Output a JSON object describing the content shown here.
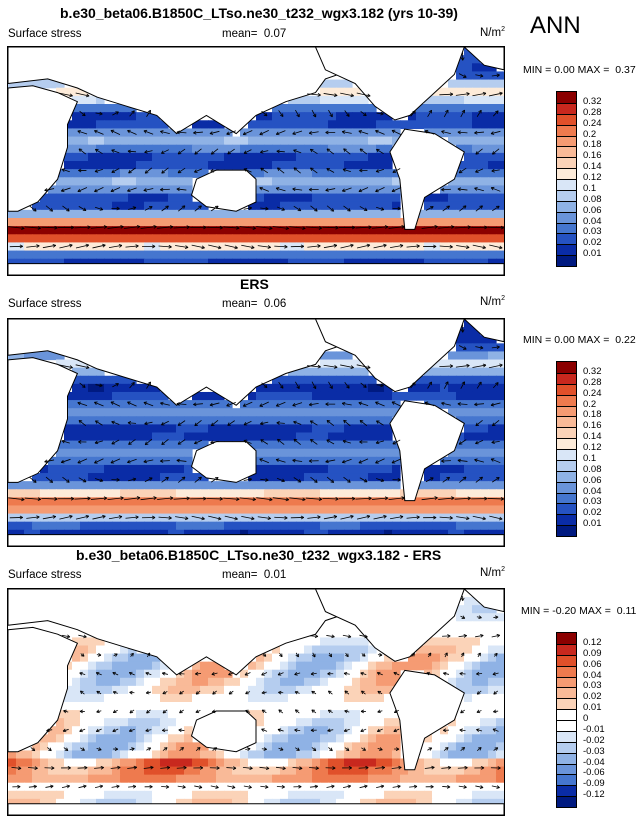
{
  "season_label": "ANN",
  "panels": [
    {
      "title": "b.e30_beta06.B1850C_LTso.ne30_t232_wgx3.182 (yrs 10-39)",
      "variable": "Surface stress",
      "mean_label": "mean=",
      "mean_value": "0.07",
      "units": "N/m",
      "units_sup": "2",
      "min_label": "MIN =",
      "min_value": "0.00",
      "max_label": "MAX =",
      "max_value": "0.37",
      "colorbar_labels": [
        "0.32",
        "0.28",
        "0.24",
        "0.2",
        "0.18",
        "0.16",
        "0.14",
        "0.12",
        "0.1",
        "0.08",
        "0.06",
        "0.04",
        "0.03",
        "0.02",
        "0.01"
      ]
    },
    {
      "title": "ERS",
      "variable": "Surface stress",
      "mean_label": "mean=",
      "mean_value": "0.06",
      "units": "N/m",
      "units_sup": "2",
      "min_label": "MIN =",
      "min_value": "0.00",
      "max_label": "MAX =",
      "max_value": "0.22",
      "colorbar_labels": [
        "0.32",
        "0.28",
        "0.24",
        "0.2",
        "0.18",
        "0.16",
        "0.14",
        "0.12",
        "0.1",
        "0.08",
        "0.06",
        "0.04",
        "0.03",
        "0.02",
        "0.01"
      ]
    },
    {
      "title": "b.e30_beta06.B1850C_LTso.ne30_t232_wgx3.182 - ERS",
      "variable": "Surface stress",
      "mean_label": "mean=",
      "mean_value": "0.01",
      "units": "N/m",
      "units_sup": "2",
      "min_label": "MIN =",
      "min_value": "-0.20",
      "max_label": "MAX =",
      "max_value": "0.11",
      "colorbar_labels": [
        "0.12",
        "0.09",
        "0.06",
        "0.04",
        "0.03",
        "0.02",
        "0.01",
        "0",
        "-0.01",
        "-0.02",
        "-0.03",
        "-0.04",
        "-0.06",
        "-0.09",
        "-0.12"
      ]
    }
  ],
  "colors": {
    "abs_scale": [
      "#8b0000",
      "#c8281e",
      "#e0502a",
      "#ee7a4e",
      "#f59b73",
      "#f9ba98",
      "#fbd3b8",
      "#fdebd9",
      "#d9e6f7",
      "#b5cdef",
      "#8fb2e5",
      "#6a94da",
      "#4576cf",
      "#2552c2",
      "#0a2ca6",
      "#001a80"
    ],
    "diff_scale": [
      "#8b0000",
      "#c8281e",
      "#e0502a",
      "#ee7a4e",
      "#f59b73",
      "#f9ba98",
      "#fbd3b8",
      "#ffffff",
      "#ffffff",
      "#d9e6f7",
      "#b5cdef",
      "#8fb2e5",
      "#6a94da",
      "#4576cf",
      "#0a2ca6",
      "#001a80"
    ],
    "land": "#ffffff",
    "coast": "#000000"
  }
}
